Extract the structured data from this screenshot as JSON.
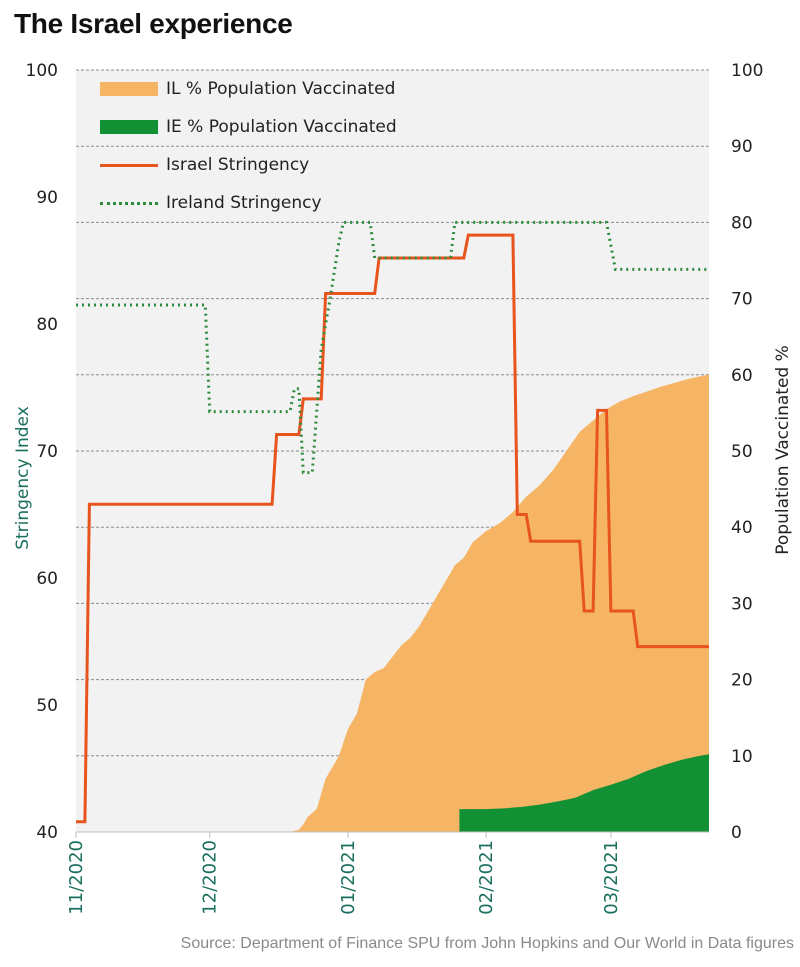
{
  "title": "The Israel experience",
  "source": "Source: Department of Finance SPU from John Hopkins and Our World in Data figures",
  "legend": {
    "il_vacc": "IL % Population Vaccinated",
    "ie_vacc": "IE % Population Vaccinated",
    "il_str": "Israel Stringency",
    "ie_str": "Ireland Stringency"
  },
  "colors": {
    "il_vacc": "#f5b565",
    "ie_vacc": "#119133",
    "il_str": "#e8541e",
    "ie_str": "#2e8b3c",
    "plot_bg": "#f2f2f2",
    "axis_title_left": "#1a6f5e"
  },
  "chart_data": {
    "type": "line",
    "title": "The Israel experience",
    "x_ticks": [
      "11/2020",
      "12/2020",
      "01/2021",
      "02/2021",
      "03/2021"
    ],
    "x_range": [
      "2020-11-01",
      "2021-03-23"
    ],
    "y_left": {
      "label": "Stringency Index",
      "range": [
        40,
        100
      ],
      "ticks": [
        40,
        50,
        60,
        70,
        80,
        90,
        100
      ]
    },
    "y_right": {
      "label": "Population Vaccinated %",
      "range": [
        0,
        100
      ],
      "ticks": [
        0,
        10,
        20,
        30,
        40,
        50,
        60,
        70,
        80,
        90,
        100
      ]
    },
    "grid": true,
    "legend_position": "top-left",
    "series": [
      {
        "name": "IL % Population Vaccinated",
        "kind": "area",
        "axis": "right",
        "points": [
          [
            "2020-12-19",
            0
          ],
          [
            "2020-12-21",
            0.3
          ],
          [
            "2020-12-22",
            1
          ],
          [
            "2020-12-23",
            2
          ],
          [
            "2020-12-25",
            3
          ],
          [
            "2020-12-27",
            7
          ],
          [
            "2020-12-30",
            10
          ],
          [
            "2021-01-01",
            13.5
          ],
          [
            "2021-01-03",
            15.5
          ],
          [
            "2021-01-05",
            20
          ],
          [
            "2021-01-07",
            21
          ],
          [
            "2021-01-09",
            21.5
          ],
          [
            "2021-01-11",
            23
          ],
          [
            "2021-01-13",
            24.5
          ],
          [
            "2021-01-15",
            25.5
          ],
          [
            "2021-01-17",
            27
          ],
          [
            "2021-01-19",
            29
          ],
          [
            "2021-01-21",
            31
          ],
          [
            "2021-01-23",
            33
          ],
          [
            "2021-01-25",
            35
          ],
          [
            "2021-01-27",
            36
          ],
          [
            "2021-01-29",
            38
          ],
          [
            "2021-02-01",
            39.5
          ],
          [
            "2021-02-04",
            40.5
          ],
          [
            "2021-02-07",
            42
          ],
          [
            "2021-02-10",
            44
          ],
          [
            "2021-02-13",
            45.5
          ],
          [
            "2021-02-16",
            47.5
          ],
          [
            "2021-02-19",
            50
          ],
          [
            "2021-02-22",
            52.5
          ],
          [
            "2021-02-25",
            54
          ],
          [
            "2021-02-28",
            55.5
          ],
          [
            "2021-03-03",
            56.5
          ],
          [
            "2021-03-06",
            57.2
          ],
          [
            "2021-03-09",
            57.8
          ],
          [
            "2021-03-12",
            58.4
          ],
          [
            "2021-03-15",
            58.9
          ],
          [
            "2021-03-18",
            59.4
          ],
          [
            "2021-03-21",
            59.8
          ],
          [
            "2021-03-23",
            60
          ]
        ]
      },
      {
        "name": "IE % Population Vaccinated",
        "kind": "area",
        "axis": "right",
        "points": [
          [
            "2021-01-26",
            0
          ],
          [
            "2021-01-26",
            3
          ],
          [
            "2021-02-01",
            3
          ],
          [
            "2021-02-05",
            3.1
          ],
          [
            "2021-02-09",
            3.3
          ],
          [
            "2021-02-13",
            3.6
          ],
          [
            "2021-02-17",
            4
          ],
          [
            "2021-02-21",
            4.5
          ],
          [
            "2021-02-25",
            5.5
          ],
          [
            "2021-03-01",
            6.2
          ],
          [
            "2021-03-05",
            7
          ],
          [
            "2021-03-09",
            8
          ],
          [
            "2021-03-13",
            8.8
          ],
          [
            "2021-03-17",
            9.5
          ],
          [
            "2021-03-21",
            10
          ],
          [
            "2021-03-23",
            10.2
          ]
        ]
      },
      {
        "name": "Israel Stringency",
        "kind": "line",
        "style": "solid",
        "axis": "left",
        "points": [
          [
            "2020-11-01",
            40.8
          ],
          [
            "2020-11-03",
            40.8
          ],
          [
            "2020-11-04",
            65.8
          ],
          [
            "2020-12-15",
            65.8
          ],
          [
            "2020-12-16",
            71.3
          ],
          [
            "2020-12-21",
            71.3
          ],
          [
            "2020-12-22",
            74.1
          ],
          [
            "2020-12-26",
            74.1
          ],
          [
            "2020-12-27",
            82.4
          ],
          [
            "2021-01-07",
            82.4
          ],
          [
            "2021-01-08",
            85.2
          ],
          [
            "2021-01-27",
            85.2
          ],
          [
            "2021-01-28",
            87.0
          ],
          [
            "2021-02-07",
            87.0
          ],
          [
            "2021-02-08",
            65.0
          ],
          [
            "2021-02-10",
            65.0
          ],
          [
            "2021-02-11",
            62.9
          ],
          [
            "2021-02-22",
            62.9
          ],
          [
            "2021-02-23",
            57.4
          ],
          [
            "2021-02-25",
            57.4
          ],
          [
            "2021-02-26",
            73.2
          ],
          [
            "2021-02-28",
            73.2
          ],
          [
            "2021-03-01",
            57.4
          ],
          [
            "2021-03-06",
            57.4
          ],
          [
            "2021-03-07",
            54.6
          ],
          [
            "2021-03-23",
            54.6
          ]
        ]
      },
      {
        "name": "Ireland Stringency",
        "kind": "line",
        "style": "dotted",
        "axis": "left",
        "points": [
          [
            "2020-11-01",
            81.5
          ],
          [
            "2020-11-30",
            81.5
          ],
          [
            "2020-12-01",
            73.1
          ],
          [
            "2020-12-19",
            73.1
          ],
          [
            "2020-12-20",
            74.9
          ],
          [
            "2020-12-21",
            74.9
          ],
          [
            "2020-12-22",
            68.3
          ],
          [
            "2020-12-24",
            68.3
          ],
          [
            "2020-12-26",
            78.0
          ],
          [
            "2020-12-28",
            82.0
          ],
          [
            "2020-12-30",
            86.5
          ],
          [
            "2020-12-31",
            88.0
          ],
          [
            "2021-01-06",
            88.0
          ],
          [
            "2021-01-07",
            85.2
          ],
          [
            "2021-01-24",
            85.2
          ],
          [
            "2021-01-25",
            88.0
          ],
          [
            "2021-02-28",
            88.0
          ],
          [
            "2021-03-02",
            84.3
          ],
          [
            "2021-03-23",
            84.3
          ]
        ]
      }
    ]
  }
}
